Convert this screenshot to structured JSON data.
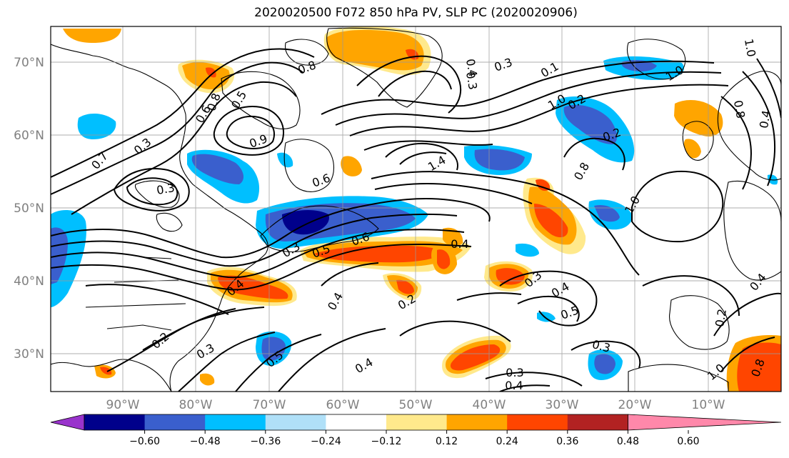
{
  "title": "2020020500 F072 850 hPa PV, SLP PC (2020020906)",
  "lat_labels": [
    "70°N",
    "60°N",
    "50°N",
    "40°N",
    "30°N"
  ],
  "lon_labels": [
    "90°W",
    "80°W",
    "70°W",
    "60°W",
    "50°W",
    "40°W",
    "30°W",
    "20°W",
    "10°W"
  ],
  "colorbar": {
    "ticks": [
      "−0.60",
      "−0.48",
      "−0.36",
      "−0.24",
      "−0.12",
      "0.12",
      "0.24",
      "0.36",
      "0.48",
      "0.60"
    ],
    "colors": [
      "#9933cc",
      "#00008b",
      "#3a5fcd",
      "#00bfff",
      "#b0e0f8",
      "#ffffff",
      "#ffe98c",
      "#ffa500",
      "#ff4500",
      "#b22222",
      "#ff88aa"
    ]
  },
  "contour_labels": [
    "0.8",
    "0.3",
    "0.4",
    "0.3",
    "0.1",
    "1.0",
    "0.6",
    "0.8",
    "0.5",
    "0.9",
    "1.0",
    "0.8",
    "0.4",
    "1.0",
    "0.2",
    "0.2",
    "0.3",
    "0.7",
    "0.3",
    "1.4",
    "0.8",
    "1.0",
    "0.6",
    "0.3",
    "0.5",
    "0.6",
    "0.4",
    "0.4",
    "0.3",
    "0.4",
    "0.5",
    "0.2",
    "0.4",
    "0.2",
    "0.3",
    "0.5",
    "0.4",
    "0.3",
    "0.3",
    "0.4",
    "0.2",
    "0.4",
    "1.0",
    "0.8"
  ]
}
